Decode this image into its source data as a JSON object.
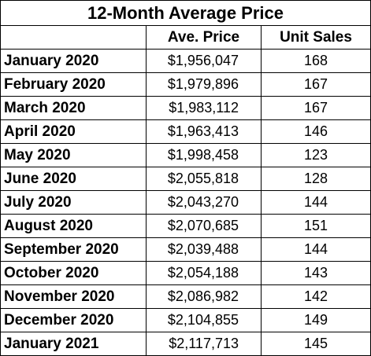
{
  "title": "12-Month Average Price",
  "headers": {
    "month": "",
    "price": "Ave. Price",
    "units": "Unit Sales"
  },
  "rows": [
    {
      "month": "January 2020",
      "price": "$1,956,047",
      "units": "168"
    },
    {
      "month": "February 2020",
      "price": "$1,979,896",
      "units": "167"
    },
    {
      "month": "March 2020",
      "price": "$1,983,112",
      "units": "167"
    },
    {
      "month": "April 2020",
      "price": "$1,963,413",
      "units": "146"
    },
    {
      "month": "May 2020",
      "price": "$1,998,458",
      "units": "123"
    },
    {
      "month": "June 2020",
      "price": "$2,055,818",
      "units": "128"
    },
    {
      "month": "July 2020",
      "price": "$2,043,270",
      "units": "144"
    },
    {
      "month": "August 2020",
      "price": "$2,070,685",
      "units": "151"
    },
    {
      "month": "September 2020",
      "price": "$2,039,488",
      "units": "144"
    },
    {
      "month": "October 2020",
      "price": "$2,054,188",
      "units": "143"
    },
    {
      "month": "November 2020",
      "price": "$2,086,982",
      "units": "142"
    },
    {
      "month": "December 2020",
      "price": "$2,104,855",
      "units": "149"
    },
    {
      "month": "January 2021",
      "price": "$2,117,713",
      "units": "145"
    }
  ]
}
